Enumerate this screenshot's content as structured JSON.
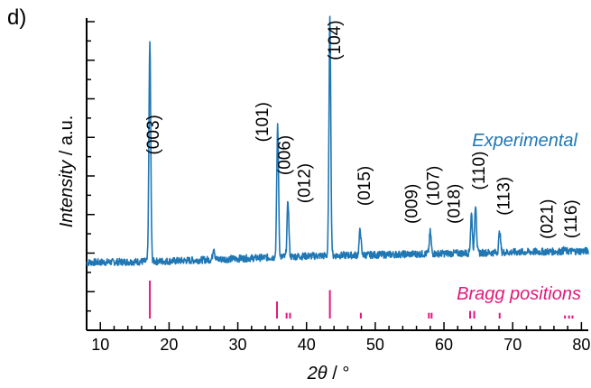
{
  "panel_label": "d)",
  "chart_data": {
    "type": "line",
    "xlabel_symbol": "2θ",
    "xlabel_unit": "/ °",
    "ylabel_main": "Intensity",
    "ylabel_unit": "/ a.u.",
    "xlim": [
      8,
      81
    ],
    "ylim": [
      0,
      1
    ],
    "xticks": [
      10,
      20,
      30,
      40,
      50,
      60,
      70,
      80
    ],
    "colors": {
      "experimental": "#1f77b4",
      "bragg": "#e0197d",
      "axis": "#000000"
    },
    "series": [
      {
        "name": "Experimental",
        "baseline": [
          [
            8,
            0.05
          ],
          [
            20,
            0.055
          ],
          [
            30,
            0.065
          ],
          [
            40,
            0.075
          ],
          [
            50,
            0.08
          ],
          [
            60,
            0.085
          ],
          [
            70,
            0.09
          ],
          [
            81,
            0.095
          ]
        ],
        "peaks": [
          {
            "x": 17.2,
            "y": 0.91
          },
          {
            "x": 26.5,
            "y": 0.11
          },
          {
            "x": 35.8,
            "y": 0.59
          },
          {
            "x": 37.3,
            "y": 0.29
          },
          {
            "x": 43.4,
            "y": 1.0
          },
          {
            "x": 47.8,
            "y": 0.18
          },
          {
            "x": 58.0,
            "y": 0.17
          },
          {
            "x": 64.0,
            "y": 0.24
          },
          {
            "x": 64.6,
            "y": 0.28
          },
          {
            "x": 68.1,
            "y": 0.17
          },
          {
            "x": 77.5,
            "y": 0.1
          }
        ]
      }
    ],
    "bragg_positions_label": "Bragg positions",
    "bragg": [
      {
        "x": 17.2,
        "h": 1.0
      },
      {
        "x": 35.7,
        "h": 0.45
      },
      {
        "x": 37.1,
        "h": 0.15
      },
      {
        "x": 37.6,
        "h": 0.15
      },
      {
        "x": 43.4,
        "h": 0.75
      },
      {
        "x": 47.9,
        "h": 0.15
      },
      {
        "x": 57.8,
        "h": 0.15
      },
      {
        "x": 58.2,
        "h": 0.15
      },
      {
        "x": 63.8,
        "h": 0.2
      },
      {
        "x": 64.4,
        "h": 0.2
      },
      {
        "x": 68.1,
        "h": 0.15
      },
      {
        "x": 77.6,
        "h": 0.08
      },
      {
        "x": 78.2,
        "h": 0.08
      },
      {
        "x": 78.7,
        "h": 0.08
      }
    ],
    "annotations": [
      {
        "text": "(003)",
        "x": 18.5,
        "y": 0.55
      },
      {
        "text": "(101)",
        "x": 34.4,
        "y": 0.6
      },
      {
        "text": "(006)",
        "x": 37.6,
        "y": 0.47
      },
      {
        "text": "(012)",
        "x": 40.5,
        "y": 0.36
      },
      {
        "text": "(104)",
        "x": 44.9,
        "y": 0.92
      },
      {
        "text": "(015)",
        "x": 49.2,
        "y": 0.35
      },
      {
        "text": "(009)",
        "x": 56.1,
        "y": 0.28
      },
      {
        "text": "(107)",
        "x": 59.3,
        "y": 0.35
      },
      {
        "text": "(018)",
        "x": 62.3,
        "y": 0.28
      },
      {
        "text": "(110)",
        "x": 65.9,
        "y": 0.41
      },
      {
        "text": "(113)",
        "x": 69.5,
        "y": 0.31
      },
      {
        "text": "(021)",
        "x": 75.8,
        "y": 0.22
      },
      {
        "text": "(116)",
        "x": 79.3,
        "y": 0.22
      }
    ]
  }
}
